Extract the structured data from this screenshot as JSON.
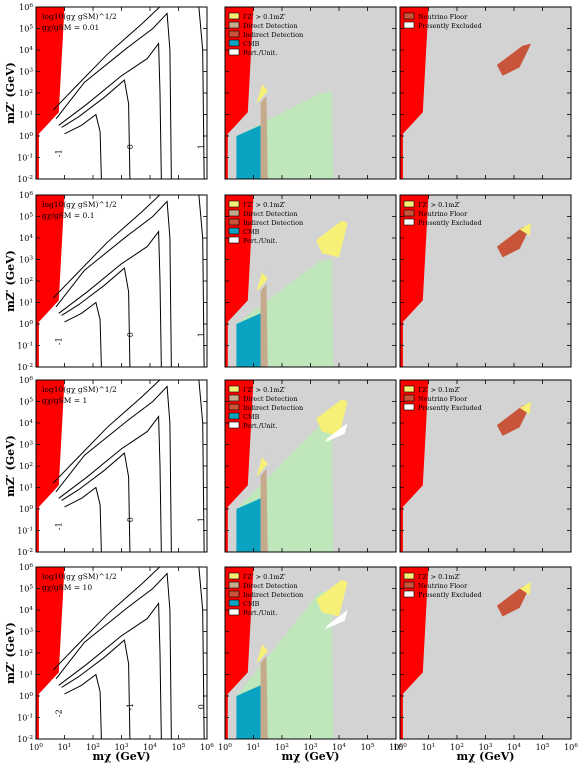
{
  "chart_data": {
    "type": "contour-grid",
    "rows_ratio": [
      "0.01",
      "0.1",
      "1",
      "10"
    ],
    "ratio_prefix": "gχ/gSM = ",
    "contour_title": "log10(gχ gSM)^1/2",
    "x_tick_labels": [
      "10^0",
      "10^1",
      "10^2",
      "10^3",
      "10^4",
      "10^5",
      "10^6"
    ],
    "y_tick_labels": [
      "10^-2",
      "10^-1",
      "10^0",
      "10^1",
      "10^2",
      "10^3",
      "10^4",
      "10^5",
      "10^6"
    ],
    "xlim_log10": [
      0,
      6
    ],
    "ylim_log10": [
      -2,
      6
    ],
    "xlabel": "mχ (GeV)",
    "ylabel": "mZ′ (GeV)",
    "col2_legend": [
      "ΓZ′ > 0.1mZ′",
      "Direct Detection",
      "Indirect Detection",
      "CMB",
      "Pert./Unit."
    ],
    "col3_legend_row1": [
      "Neutrino Floor",
      "Presently Excluded"
    ],
    "col3_legend_other": [
      "ΓZ′ > 0.1mZ′",
      "Neutrino Floor",
      "Presently Excluded"
    ],
    "contour_labels": [
      [
        "-1",
        "0",
        "1"
      ],
      [
        "-1",
        "0",
        "1"
      ],
      [
        "-1",
        "0",
        "1"
      ],
      [
        "-2",
        "-1",
        "0"
      ]
    ],
    "colors": {
      "red": "#ff0000",
      "yellow": "#f6f176",
      "tan": "#c6aa8e",
      "brown": "#c8553a",
      "cmb": "#0aa3c2",
      "green": "#bfe7bb",
      "gray": "#d3d3d3",
      "white": "#ffffff"
    }
  }
}
